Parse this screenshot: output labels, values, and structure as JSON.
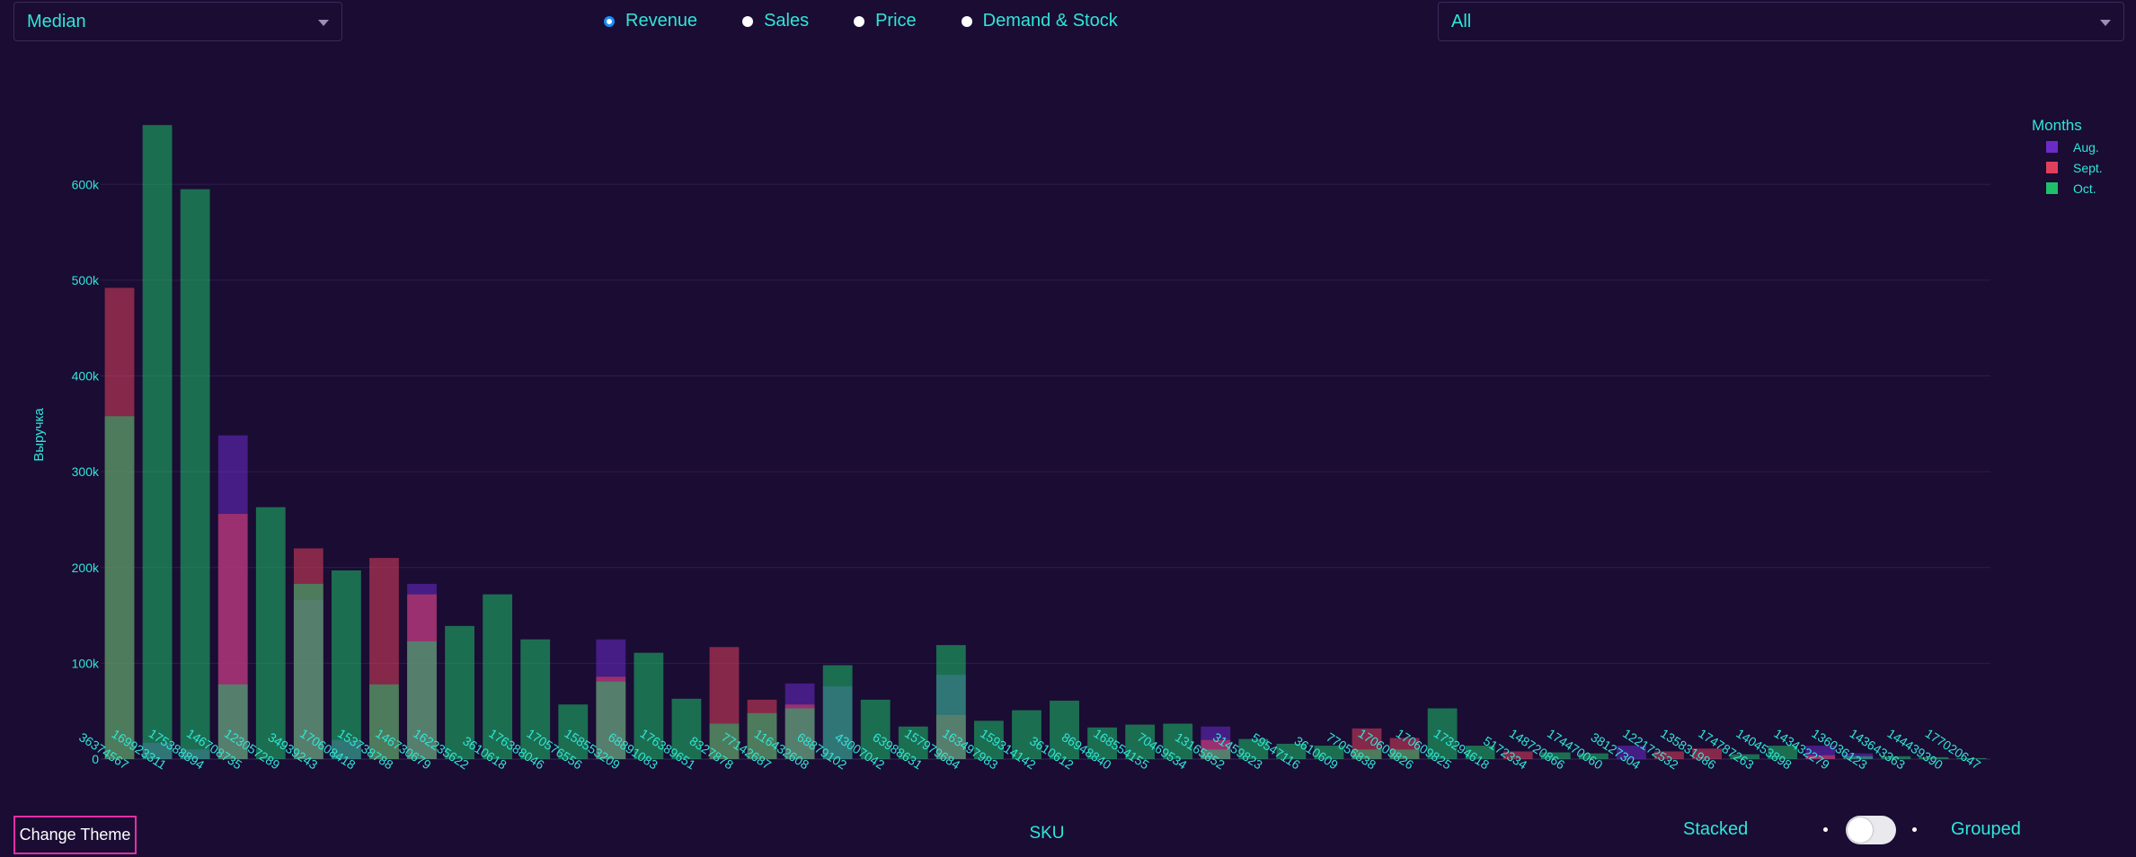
{
  "controls": {
    "aggregation": "Median",
    "metrics": [
      "Revenue",
      "Sales",
      "Price",
      "Demand & Stock"
    ],
    "selected_metric": "Revenue",
    "category_filter": "All",
    "theme_button": "Change Theme",
    "toggle_left": "Stacked",
    "toggle_right": "Grouped"
  },
  "chart_data": {
    "type": "bar",
    "barmode": "overlay",
    "xlabel": "SKU",
    "ylabel": "Выручка",
    "ylim": [
      0,
      680000
    ],
    "yticks": [
      0,
      100000,
      200000,
      300000,
      400000,
      500000,
      600000
    ],
    "ytick_labels": [
      "0",
      "100k",
      "200k",
      "300k",
      "400k",
      "500k",
      "600k"
    ],
    "grid": true,
    "legend_title": "Months",
    "legend_position": "top-right",
    "categories": [
      "36374567",
      "169923311",
      "175388894",
      "146708735",
      "123057289",
      "34939243",
      "170608418",
      "153738788",
      "146730679",
      "162235622",
      "3610618",
      "176388046",
      "170576556",
      "158553209",
      "68891083",
      "176389651",
      "8327878",
      "77142687",
      "116432608",
      "68879102",
      "43007042",
      "63988631",
      "157979684",
      "163497983",
      "159314142",
      "3610612",
      "86948840",
      "168554155",
      "70469534",
      "13165852",
      "31459823",
      "59547116",
      "3610609",
      "77056838",
      "170609826",
      "170609825",
      "173294618",
      "5172334",
      "148720866",
      "174470060",
      "38127304",
      "122172532",
      "135831986",
      "174787263",
      "140453898",
      "143432279",
      "136036123",
      "143643363",
      "144439390",
      "177020647"
    ],
    "series": [
      {
        "name": "Aug.",
        "color": "#6a2bc8",
        "values": [
          0,
          17000,
          10000,
          338000,
          0,
          166000,
          20000,
          0,
          183000,
          0,
          0,
          0,
          0,
          125000,
          0,
          0,
          0,
          0,
          79000,
          76000,
          0,
          0,
          88000,
          0,
          0,
          0,
          0,
          0,
          0,
          34000,
          0,
          0,
          0,
          0,
          0,
          0,
          0,
          0,
          0,
          0,
          14000,
          0,
          0,
          0,
          0,
          14000,
          6000,
          0,
          0,
          0
        ]
      },
      {
        "name": "Sept.",
        "color": "#e0405c",
        "values": [
          492000,
          0,
          0,
          256000,
          0,
          220000,
          0,
          210000,
          172000,
          0,
          0,
          0,
          0,
          86000,
          0,
          0,
          117000,
          62000,
          57000,
          0,
          0,
          0,
          46000,
          0,
          0,
          0,
          0,
          0,
          0,
          20000,
          0,
          0,
          0,
          32000,
          22000,
          0,
          0,
          8000,
          0,
          0,
          0,
          8000,
          11000,
          0,
          0,
          4000,
          0,
          0,
          0,
          0
        ]
      },
      {
        "name": "Oct.",
        "color": "#1fc06a",
        "values": [
          358000,
          662000,
          595000,
          78000,
          263000,
          183000,
          197000,
          78000,
          123000,
          139000,
          172000,
          125000,
          57000,
          81000,
          111000,
          63000,
          37000,
          48000,
          53000,
          98000,
          62000,
          34000,
          119000,
          40000,
          51000,
          61000,
          33000,
          36000,
          37000,
          10000,
          21000,
          16000,
          14000,
          10000,
          10000,
          53000,
          14000,
          0,
          7000,
          6000,
          0,
          0,
          0,
          5000,
          14000,
          0,
          3000,
          3000,
          2000,
          1000
        ]
      }
    ]
  }
}
